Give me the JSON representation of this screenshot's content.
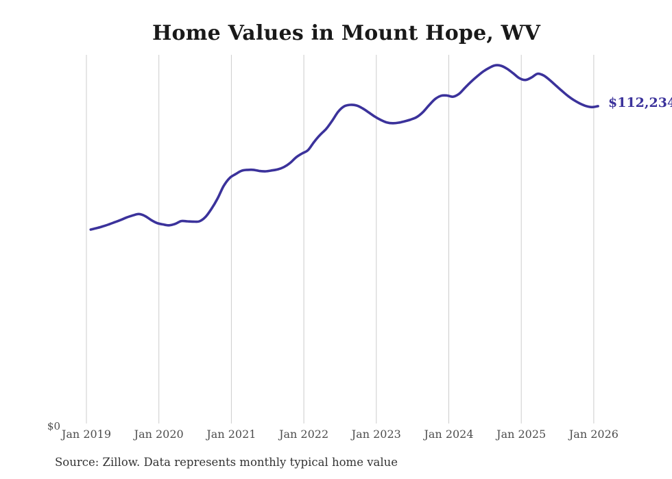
{
  "title": "Home Values in Mount Hope, WV",
  "source_note": "Source: Zillow. Data represents monthly typical home value",
  "colors": {
    "line": "#3b329b",
    "grid": "#cccccc",
    "title_text": "#191919",
    "axis_text": "#4d4d4d",
    "source_text": "#333333",
    "background": "#ffffff"
  },
  "chart_data": {
    "type": "line",
    "title": "Home Values in Mount Hope, WV",
    "xlabel": "",
    "ylabel": "",
    "frequency": "monthly",
    "x_start": "Jan 2019",
    "x_end": "Jan 2026",
    "x_tick_labels": [
      "Jan 2019",
      "Jan 2020",
      "Jan 2021",
      "Jan 2022",
      "Jan 2023",
      "Jan 2024",
      "Jan 2025",
      "Jan 2026"
    ],
    "y_zero_label": "$0",
    "end_label": "$112,234",
    "latest_value": 112234,
    "ylim": [
      0,
      130400
    ],
    "x_gridlines": true,
    "y_gridlines": false,
    "legend": "none",
    "series": [
      {
        "name": "Typical home value (USD)",
        "values": [
          68600,
          69100,
          69700,
          70400,
          71200,
          72000,
          72900,
          73600,
          74100,
          73400,
          72000,
          70900,
          70400,
          70100,
          70600,
          71600,
          71500,
          71400,
          71500,
          73000,
          75900,
          79500,
          83900,
          86800,
          88200,
          89400,
          89700,
          89700,
          89300,
          89200,
          89500,
          89900,
          90700,
          92100,
          94100,
          95500,
          96700,
          99600,
          102100,
          104200,
          107100,
          110300,
          112200,
          112700,
          112500,
          111500,
          110100,
          108600,
          107400,
          106500,
          106200,
          106400,
          106900,
          107500,
          108400,
          110100,
          112500,
          114700,
          115900,
          116000,
          115600,
          116600,
          118800,
          120900,
          122800,
          124500,
          125800,
          126700,
          126500,
          125400,
          123800,
          122100,
          121500,
          122400,
          123700,
          123100,
          121500,
          119600,
          117700,
          115900,
          114400,
          113200,
          112300,
          111900,
          112234
        ]
      }
    ]
  }
}
